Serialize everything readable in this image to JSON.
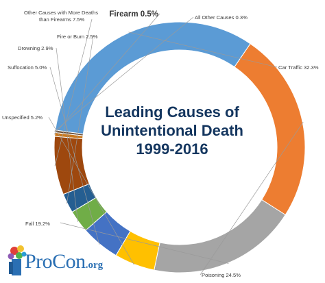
{
  "chart_data": {
    "type": "pie",
    "variant": "donut",
    "title_lines": [
      "Leading Causes of",
      "Unintentional Death",
      "1999-2016"
    ],
    "slices": [
      {
        "label": "Firearm",
        "value": 0.5,
        "display": "Firearm 0.5%",
        "color": "#c9781e",
        "emphasis": true
      },
      {
        "label": "All Other Causes",
        "value": 0.3,
        "display": "All Other Causes 0.3%",
        "color": "#6a4f3a"
      },
      {
        "label": "Car Traffic",
        "value": 32.3,
        "display": "Car Traffic 32.3%",
        "color": "#5b9bd5"
      },
      {
        "label": "Poisoning",
        "value": 24.5,
        "display": "Poisoning 24.5%",
        "color": "#ed7d31"
      },
      {
        "label": "Fall",
        "value": 19.2,
        "display": "Fall 19.2%",
        "color": "#a5a5a5"
      },
      {
        "label": "Unspecified",
        "value": 5.2,
        "display": "Unspecified 5.2%",
        "color": "#ffc000"
      },
      {
        "label": "Suffocation",
        "value": 5.0,
        "display": "Suffocation 5.0%",
        "color": "#4472c4"
      },
      {
        "label": "Drowning",
        "value": 2.9,
        "display": "Drowning 2.9%",
        "color": "#70ad47"
      },
      {
        "label": "Fire or Burn",
        "value": 2.5,
        "display": "Fire or Burn 2.5%",
        "color": "#255e91"
      },
      {
        "label": "Other Causes with More Deaths than Firearms",
        "value": 7.5,
        "display_lines": [
          "Other Causes with More Deaths",
          "than Firearms 7.5%"
        ],
        "color": "#9e480e"
      }
    ]
  },
  "logo": {
    "text": "ProCon",
    "suffix": ".org"
  }
}
